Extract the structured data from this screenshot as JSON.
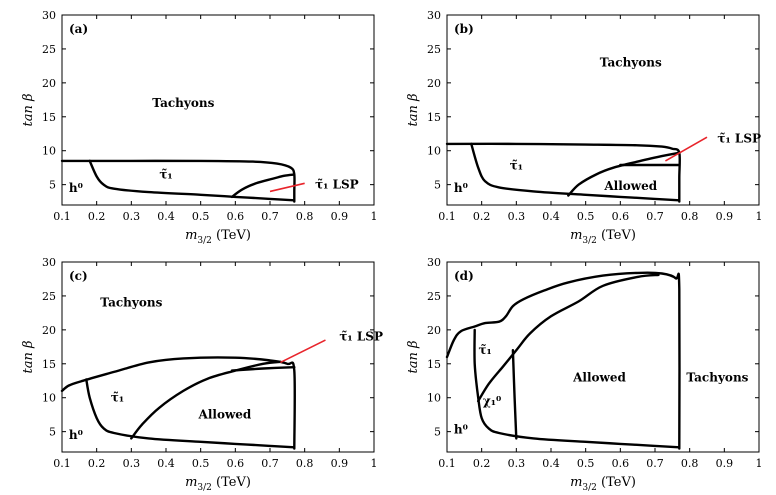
{
  "chart_data": [
    {
      "type": "line",
      "panel_label": "(a)",
      "xlabel": "m_{3/2} (TeV)",
      "ylabel": "tan β",
      "xlim": [
        0.1,
        1.0
      ],
      "ylim": [
        2,
        30
      ],
      "xticks": [
        "0.1",
        "0.2",
        "0.3",
        "0.4",
        "0.5",
        "0.6",
        "0.7",
        "0.8",
        "0.9",
        "1"
      ],
      "yticks": [
        "5",
        "10",
        "15",
        "20",
        "25",
        "30"
      ],
      "grid": false,
      "curves": [
        {
          "points": [
            [
              0.1,
              8.5
            ],
            [
              0.3,
              8.5
            ],
            [
              0.5,
              8.5
            ],
            [
              0.65,
              8.4
            ],
            [
              0.72,
              8.1
            ],
            [
              0.76,
              7.5
            ],
            [
              0.77,
              6.5
            ],
            [
              0.77,
              4
            ],
            [
              0.77,
              2.5
            ]
          ]
        },
        {
          "points": [
            [
              0.18,
              8.5
            ],
            [
              0.2,
              6.2
            ],
            [
              0.22,
              5.0
            ],
            [
              0.25,
              4.4
            ],
            [
              0.35,
              3.9
            ],
            [
              0.5,
              3.5
            ],
            [
              0.6,
              3.2
            ],
            [
              0.7,
              2.9
            ],
            [
              0.77,
              2.7
            ]
          ]
        },
        {
          "points": [
            [
              0.59,
              3.2
            ],
            [
              0.62,
              4.3
            ],
            [
              0.66,
              5.2
            ],
            [
              0.71,
              5.9
            ],
            [
              0.74,
              6.3
            ],
            [
              0.77,
              6.5
            ]
          ]
        }
      ],
      "annotations": [
        {
          "text": "Tachyons",
          "x": 0.45,
          "y": 17
        },
        {
          "text": "τ̃₁",
          "x": 0.4,
          "y": 6.5
        },
        {
          "text": "h⁰",
          "x": 0.14,
          "y": 4.5
        },
        {
          "text": "τ̃₁ LSP",
          "x": 0.83,
          "y": 5.0,
          "arrow_from": [
            0.7,
            4.0
          ],
          "arrow_to": [
            0.8,
            5.2
          ],
          "color": "#e8242b"
        }
      ]
    },
    {
      "type": "line",
      "panel_label": "(b)",
      "xlabel": "m_{3/2} (TeV)",
      "ylabel": "tan β",
      "xlim": [
        0.1,
        1.0
      ],
      "ylim": [
        2,
        30
      ],
      "xticks": [
        "0.1",
        "0.2",
        "0.3",
        "0.4",
        "0.5",
        "0.6",
        "0.7",
        "0.8",
        "0.9",
        "1"
      ],
      "yticks": [
        "5",
        "10",
        "15",
        "20",
        "25",
        "30"
      ],
      "grid": false,
      "curves": [
        {
          "points": [
            [
              0.1,
              11
            ],
            [
              0.3,
              11
            ],
            [
              0.5,
              10.9
            ],
            [
              0.65,
              10.8
            ],
            [
              0.72,
              10.6
            ],
            [
              0.75,
              10.3
            ],
            [
              0.77,
              9.7
            ],
            [
              0.77,
              6
            ],
            [
              0.77,
              2.5
            ]
          ]
        },
        {
          "points": [
            [
              0.17,
              11
            ],
            [
              0.19,
              7.5
            ],
            [
              0.21,
              5.5
            ],
            [
              0.25,
              4.6
            ],
            [
              0.35,
              4.0
            ],
            [
              0.5,
              3.5
            ],
            [
              0.6,
              3.2
            ],
            [
              0.7,
              2.9
            ],
            [
              0.77,
              2.7
            ]
          ]
        },
        {
          "points": [
            [
              0.45,
              3.4
            ],
            [
              0.48,
              5.0
            ],
            [
              0.53,
              6.5
            ],
            [
              0.58,
              7.5
            ],
            [
              0.65,
              8.4
            ],
            [
              0.72,
              9.2
            ],
            [
              0.77,
              9.7
            ]
          ]
        },
        {
          "points": [
            [
              0.6,
              7.9
            ],
            [
              0.77,
              7.9
            ]
          ]
        }
      ],
      "annotations": [
        {
          "text": "Tachyons",
          "x": 0.63,
          "y": 23
        },
        {
          "text": "τ̃₁",
          "x": 0.3,
          "y": 7.8
        },
        {
          "text": "h⁰",
          "x": 0.14,
          "y": 4.5
        },
        {
          "text": "Allowed",
          "x": 0.63,
          "y": 4.8
        },
        {
          "text": "τ̃₁ LSP",
          "x": 0.88,
          "y": 11.8,
          "arrow_from": [
            0.73,
            8.5
          ],
          "arrow_to": [
            0.85,
            12.0
          ],
          "color": "#e8242b"
        }
      ]
    },
    {
      "type": "line",
      "panel_label": "(c)",
      "xlabel": "m_{3/2} (TeV)",
      "ylabel": "tan β",
      "xlim": [
        0.1,
        1.0
      ],
      "ylim": [
        2,
        30
      ],
      "xticks": [
        "0.1",
        "0.2",
        "0.3",
        "0.4",
        "0.5",
        "0.6",
        "0.7",
        "0.8",
        "0.9",
        "1"
      ],
      "yticks": [
        "5",
        "10",
        "15",
        "20",
        "25",
        "30"
      ],
      "grid": false,
      "curves": [
        {
          "points": [
            [
              0.1,
              11
            ],
            [
              0.12,
              11.8
            ],
            [
              0.16,
              12.5
            ],
            [
              0.25,
              13.8
            ],
            [
              0.35,
              15.2
            ],
            [
              0.45,
              15.8
            ],
            [
              0.6,
              15.9
            ],
            [
              0.7,
              15.5
            ],
            [
              0.75,
              15
            ],
            [
              0.77,
              14
            ],
            [
              0.77,
              2.5
            ]
          ]
        },
        {
          "points": [
            [
              0.17,
              12.7
            ],
            [
              0.18,
              10
            ],
            [
              0.2,
              7
            ],
            [
              0.22,
              5.5
            ],
            [
              0.25,
              4.8
            ],
            [
              0.35,
              4.0
            ],
            [
              0.5,
              3.5
            ],
            [
              0.6,
              3.2
            ],
            [
              0.7,
              2.9
            ],
            [
              0.77,
              2.7
            ]
          ]
        },
        {
          "points": [
            [
              0.3,
              4.0
            ],
            [
              0.33,
              6
            ],
            [
              0.38,
              8.5
            ],
            [
              0.45,
              11
            ],
            [
              0.52,
              12.8
            ],
            [
              0.6,
              14
            ],
            [
              0.68,
              15
            ],
            [
              0.73,
              15.3
            ]
          ]
        },
        {
          "points": [
            [
              0.59,
              14
            ],
            [
              0.68,
              14.3
            ],
            [
              0.77,
              14.5
            ]
          ]
        }
      ],
      "annotations": [
        {
          "text": "Tachyons",
          "x": 0.3,
          "y": 24
        },
        {
          "text": "τ̃₁",
          "x": 0.26,
          "y": 10
        },
        {
          "text": "h⁰",
          "x": 0.14,
          "y": 4.5
        },
        {
          "text": "Allowed",
          "x": 0.57,
          "y": 7.5
        },
        {
          "text": "τ̃₁ LSP",
          "x": 0.9,
          "y": 19,
          "arrow_from": [
            0.73,
            15.2
          ],
          "arrow_to": [
            0.86,
            18.5
          ],
          "color": "#e8242b"
        }
      ]
    },
    {
      "type": "line",
      "panel_label": "(d)",
      "xlabel": "m_{3/2} (TeV)",
      "ylabel": "tan β",
      "xlim": [
        0.1,
        1.0
      ],
      "ylim": [
        2,
        30
      ],
      "xticks": [
        "0.1",
        "0.2",
        "0.3",
        "0.4",
        "0.5",
        "0.6",
        "0.7",
        "0.8",
        "0.9",
        "1"
      ],
      "yticks": [
        "5",
        "10",
        "15",
        "20",
        "25",
        "30"
      ],
      "grid": false,
      "curves": [
        {
          "points": [
            [
              0.1,
              16
            ],
            [
              0.12,
              18.5
            ],
            [
              0.14,
              19.8
            ],
            [
              0.18,
              20.5
            ],
            [
              0.21,
              21
            ],
            [
              0.25,
              21.2
            ],
            [
              0.27,
              22
            ],
            [
              0.29,
              23.5
            ],
            [
              0.32,
              24.5
            ],
            [
              0.38,
              25.8
            ],
            [
              0.45,
              27
            ],
            [
              0.55,
              28
            ],
            [
              0.65,
              28.4
            ],
            [
              0.72,
              28.3
            ],
            [
              0.76,
              27.6
            ],
            [
              0.77,
              26
            ],
            [
              0.77,
              2.5
            ]
          ]
        },
        {
          "points": [
            [
              0.18,
              20
            ],
            [
              0.18,
              15
            ],
            [
              0.19,
              10
            ],
            [
              0.2,
              7
            ],
            [
              0.22,
              5.5
            ],
            [
              0.25,
              4.8
            ],
            [
              0.35,
              4.0
            ],
            [
              0.5,
              3.5
            ],
            [
              0.6,
              3.2
            ],
            [
              0.7,
              2.9
            ],
            [
              0.77,
              2.7
            ]
          ]
        },
        {
          "points": [
            [
              0.19,
              9.5
            ],
            [
              0.22,
              12
            ],
            [
              0.26,
              14.5
            ],
            [
              0.3,
              17
            ],
            [
              0.34,
              19.5
            ],
            [
              0.4,
              22
            ],
            [
              0.48,
              24.2
            ],
            [
              0.55,
              26.5
            ],
            [
              0.65,
              27.8
            ],
            [
              0.71,
              28.1
            ]
          ]
        },
        {
          "points": [
            [
              0.29,
              17
            ],
            [
              0.295,
              10
            ],
            [
              0.3,
              4.0
            ]
          ]
        }
      ],
      "annotations": [
        {
          "text": "Tachyons",
          "x": 0.88,
          "y": 13
        },
        {
          "text": "Allowed",
          "x": 0.54,
          "y": 13
        },
        {
          "text": "τ̃₁",
          "x": 0.21,
          "y": 17
        },
        {
          "text": "χ₁⁰",
          "x": 0.23,
          "y": 9.5
        },
        {
          "text": "h⁰",
          "x": 0.14,
          "y": 5.3
        }
      ]
    }
  ]
}
